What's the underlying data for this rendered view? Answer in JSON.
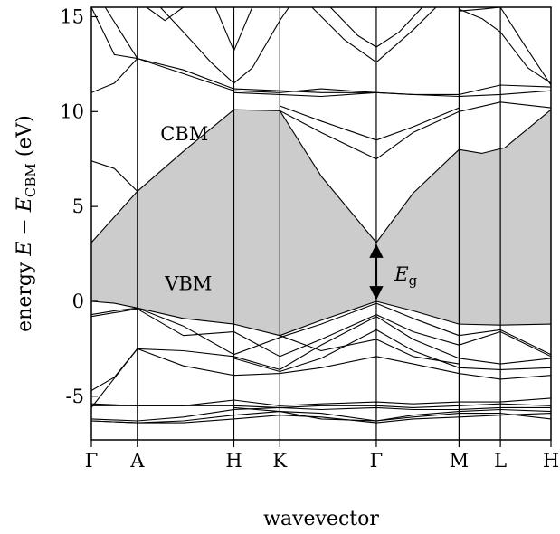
{
  "chart_data": {
    "type": "line",
    "xlabel": "wavevector",
    "ylabel": {
      "prefix": "energy ",
      "var1": "E",
      "dash": " − ",
      "var2": "E",
      "sub": "CBM",
      "unit": " (eV)"
    },
    "ylim": [
      -7.3,
      15.5
    ],
    "yticks": [
      -5,
      0,
      5,
      10,
      15
    ],
    "ytick_labels": [
      "-5",
      "0",
      "5",
      "10",
      "15"
    ],
    "kpoints": [
      {
        "label": "Γ",
        "x": 0.0
      },
      {
        "label": "A",
        "x": 0.1
      },
      {
        "label": "H",
        "x": 0.31
      },
      {
        "label": "K",
        "x": 0.41
      },
      {
        "label": "Γ",
        "x": 0.62
      },
      {
        "label": "M",
        "x": 0.8
      },
      {
        "label": "L",
        "x": 0.89
      },
      {
        "label": "H",
        "x": 1.0
      }
    ],
    "gap": {
      "upper": [
        [
          0,
          3.1
        ],
        [
          0.1,
          5.8
        ],
        [
          0.2,
          7.9
        ],
        [
          0.31,
          10.1
        ],
        [
          0.41,
          10.05
        ],
        [
          0.5,
          6.6
        ],
        [
          0.62,
          3.1
        ],
        [
          0.7,
          5.7
        ],
        [
          0.8,
          8.0
        ],
        [
          0.85,
          7.8
        ],
        [
          0.9,
          8.1
        ],
        [
          1.0,
          10.1
        ]
      ],
      "lower": [
        [
          0,
          0.0
        ],
        [
          0.05,
          -0.1
        ],
        [
          0.1,
          -0.35
        ],
        [
          0.2,
          -0.9
        ],
        [
          0.31,
          -1.2
        ],
        [
          0.41,
          -1.8
        ],
        [
          0.5,
          -1.0
        ],
        [
          0.62,
          0.0
        ],
        [
          0.7,
          -0.5
        ],
        [
          0.8,
          -1.2
        ],
        [
          0.89,
          -1.25
        ],
        [
          1.0,
          -1.2
        ]
      ]
    },
    "bands": [
      [
        [
          0,
          3.1
        ],
        [
          0.1,
          5.8
        ],
        [
          0.2,
          7.9
        ],
        [
          0.31,
          10.1
        ],
        [
          0.41,
          10.05
        ],
        [
          0.5,
          6.6
        ],
        [
          0.62,
          3.1
        ],
        [
          0.7,
          5.7
        ],
        [
          0.8,
          8.0
        ],
        [
          0.85,
          7.8
        ],
        [
          0.9,
          8.1
        ],
        [
          1.0,
          10.1
        ]
      ],
      [
        [
          0,
          7.4
        ],
        [
          0.05,
          7.0
        ],
        [
          0.1,
          5.8
        ]
      ],
      [
        [
          0,
          0.0
        ],
        [
          0.05,
          -0.1
        ],
        [
          0.1,
          -0.35
        ],
        [
          0.2,
          -0.9
        ],
        [
          0.31,
          -1.2
        ],
        [
          0.41,
          -1.8
        ],
        [
          0.5,
          -1.0
        ],
        [
          0.62,
          0.0
        ],
        [
          0.7,
          -0.5
        ],
        [
          0.8,
          -1.2
        ],
        [
          0.89,
          -1.25
        ],
        [
          1.0,
          -1.2
        ]
      ],
      [
        [
          0,
          -0.7
        ],
        [
          0.05,
          -0.5
        ],
        [
          0.1,
          -0.35
        ],
        [
          0.2,
          -1.3
        ],
        [
          0.31,
          -2.8
        ],
        [
          0.41,
          -1.9
        ],
        [
          0.5,
          -1.2
        ],
        [
          0.62,
          -0.1
        ],
        [
          0.7,
          -0.9
        ],
        [
          0.8,
          -1.8
        ],
        [
          0.89,
          -1.5
        ],
        [
          1.0,
          -2.8
        ]
      ],
      [
        [
          0,
          -0.8
        ],
        [
          0.1,
          -0.4
        ],
        [
          0.2,
          -1.8
        ],
        [
          0.31,
          -1.6
        ],
        [
          0.41,
          -2.9
        ],
        [
          0.5,
          -2.0
        ],
        [
          0.62,
          -0.7
        ],
        [
          0.7,
          -1.6
        ],
        [
          0.8,
          -2.3
        ],
        [
          0.89,
          -1.6
        ],
        [
          1.0,
          -2.9
        ]
      ],
      [
        [
          0,
          -4.7
        ],
        [
          0.05,
          -4.0
        ],
        [
          0.1,
          -2.5
        ],
        [
          0.2,
          -2.6
        ],
        [
          0.31,
          -2.9
        ],
        [
          0.41,
          -3.6
        ],
        [
          0.5,
          -2.3
        ],
        [
          0.62,
          -0.8
        ],
        [
          0.7,
          -2.0
        ],
        [
          0.8,
          -3.0
        ],
        [
          0.89,
          -3.3
        ],
        [
          1.0,
          -3.0
        ]
      ],
      [
        [
          0,
          -5.6
        ],
        [
          0.1,
          -2.5
        ]
      ],
      [
        [
          0.1,
          -2.5
        ],
        [
          0.2,
          -3.4
        ],
        [
          0.31,
          -3.9
        ],
        [
          0.41,
          -3.8
        ],
        [
          0.5,
          -3.5
        ],
        [
          0.62,
          -2.9
        ],
        [
          0.7,
          -3.3
        ],
        [
          0.8,
          -3.8
        ],
        [
          0.89,
          -4.1
        ],
        [
          1.0,
          -3.9
        ]
      ],
      [
        [
          0.31,
          -3.0
        ],
        [
          0.41,
          -3.7
        ],
        [
          0.5,
          -3.0
        ],
        [
          0.62,
          -1.5
        ],
        [
          0.7,
          -2.6
        ],
        [
          0.8,
          -3.5
        ],
        [
          0.89,
          -3.6
        ],
        [
          1.0,
          -3.5
        ]
      ],
      [
        [
          0.41,
          -1.8
        ],
        [
          0.5,
          -2.6
        ],
        [
          0.62,
          -2.0
        ],
        [
          0.7,
          -2.9
        ],
        [
          0.8,
          -3.3
        ]
      ],
      [
        [
          0,
          -5.4
        ],
        [
          0.1,
          -5.5
        ],
        [
          0.2,
          -5.5
        ],
        [
          0.31,
          -5.2
        ],
        [
          0.41,
          -5.5
        ],
        [
          0.5,
          -5.4
        ],
        [
          0.62,
          -5.3
        ],
        [
          0.7,
          -5.4
        ],
        [
          0.8,
          -5.3
        ],
        [
          0.89,
          -5.3
        ],
        [
          1.0,
          -5.1
        ]
      ],
      [
        [
          0,
          -5.5
        ],
        [
          0.1,
          -5.5
        ],
        [
          0.2,
          -5.5
        ],
        [
          0.31,
          -5.5
        ],
        [
          0.41,
          -5.6
        ],
        [
          0.5,
          -5.5
        ],
        [
          0.62,
          -5.5
        ],
        [
          0.7,
          -5.6
        ],
        [
          0.8,
          -5.5
        ],
        [
          0.89,
          -5.4
        ],
        [
          1.0,
          -5.5
        ]
      ],
      [
        [
          0,
          -6.2
        ],
        [
          0.1,
          -6.3
        ],
        [
          0.2,
          -6.1
        ],
        [
          0.31,
          -5.7
        ],
        [
          0.41,
          -5.6
        ],
        [
          0.5,
          -5.7
        ],
        [
          0.62,
          -5.6
        ],
        [
          0.7,
          -5.7
        ],
        [
          0.8,
          -5.7
        ],
        [
          0.89,
          -5.6
        ],
        [
          1.0,
          -5.6
        ]
      ],
      [
        [
          0,
          -6.3
        ],
        [
          0.1,
          -6.4
        ],
        [
          0.2,
          -6.3
        ],
        [
          0.31,
          -6.0
        ],
        [
          0.41,
          -5.8
        ],
        [
          0.5,
          -5.9
        ],
        [
          0.62,
          -6.3
        ],
        [
          0.7,
          -6.1
        ],
        [
          0.8,
          -5.9
        ],
        [
          0.89,
          -5.9
        ],
        [
          1.0,
          -6.2
        ]
      ],
      [
        [
          0,
          -6.3
        ],
        [
          0.1,
          -6.4
        ],
        [
          0.2,
          -6.4
        ],
        [
          0.31,
          -6.2
        ],
        [
          0.41,
          -6.0
        ],
        [
          0.5,
          -6.1
        ],
        [
          0.62,
          -6.4
        ],
        [
          0.7,
          -6.2
        ],
        [
          0.8,
          -6.1
        ],
        [
          0.89,
          -6.0
        ],
        [
          1.0,
          -5.9
        ]
      ],
      [
        [
          0.31,
          -5.6
        ],
        [
          0.41,
          -5.8
        ],
        [
          0.5,
          -6.2
        ],
        [
          0.62,
          -6.3
        ],
        [
          0.7,
          -6.0
        ],
        [
          0.8,
          -5.8
        ],
        [
          0.89,
          -5.7
        ],
        [
          1.0,
          -5.8
        ]
      ],
      [
        [
          0,
          11.0
        ],
        [
          0.05,
          11.5
        ],
        [
          0.1,
          12.8
        ],
        [
          0.2,
          12.0
        ],
        [
          0.31,
          11.1
        ],
        [
          0.41,
          11.0
        ],
        [
          0.5,
          11.2
        ],
        [
          0.62,
          11.0
        ],
        [
          0.7,
          10.9
        ],
        [
          0.8,
          10.9
        ],
        [
          0.89,
          11.4
        ],
        [
          1.0,
          11.3
        ]
      ],
      [
        [
          0.03,
          15.5
        ],
        [
          0.1,
          12.8
        ],
        [
          0.2,
          12.2
        ],
        [
          0.31,
          11.2
        ],
        [
          0.41,
          11.1
        ],
        [
          0.5,
          11.0
        ],
        [
          0.62,
          11.0
        ],
        [
          0.7,
          10.9
        ],
        [
          0.8,
          10.8
        ],
        [
          0.89,
          10.9
        ],
        [
          1.0,
          11.1
        ]
      ],
      [
        [
          0,
          15.5
        ],
        [
          0.05,
          13.0
        ],
        [
          0.1,
          12.8
        ]
      ],
      [
        [
          0.15,
          15.5
        ],
        [
          0.2,
          14.2
        ],
        [
          0.26,
          12.6
        ],
        [
          0.31,
          11.5
        ],
        [
          0.35,
          12.3
        ],
        [
          0.41,
          14.8
        ],
        [
          0.43,
          15.5
        ]
      ],
      [
        [
          0.12,
          15.5
        ],
        [
          0.16,
          14.8
        ],
        [
          0.2,
          15.5
        ]
      ],
      [
        [
          0.27,
          15.5
        ],
        [
          0.31,
          13.2
        ],
        [
          0.35,
          15.5
        ]
      ],
      [
        [
          0.31,
          11.0
        ],
        [
          0.41,
          10.9
        ],
        [
          0.5,
          10.8
        ],
        [
          0.62,
          11.0
        ]
      ],
      [
        [
          0.41,
          10.05
        ],
        [
          0.5,
          8.9
        ],
        [
          0.62,
          7.5
        ],
        [
          0.7,
          8.9
        ],
        [
          0.8,
          10.0
        ],
        [
          0.89,
          10.5
        ],
        [
          1.0,
          10.2
        ]
      ],
      [
        [
          0.41,
          10.3
        ],
        [
          0.5,
          9.5
        ],
        [
          0.62,
          8.5
        ],
        [
          0.7,
          9.2
        ],
        [
          0.8,
          10.2
        ]
      ],
      [
        [
          0.48,
          15.5
        ],
        [
          0.55,
          13.8
        ],
        [
          0.62,
          12.6
        ],
        [
          0.7,
          14.3
        ],
        [
          0.75,
          15.5
        ]
      ],
      [
        [
          0.52,
          15.5
        ],
        [
          0.58,
          14.0
        ],
        [
          0.62,
          13.4
        ],
        [
          0.67,
          14.2
        ],
        [
          0.72,
          15.5
        ]
      ],
      [
        [
          0.8,
          15.4
        ],
        [
          0.85,
          14.9
        ],
        [
          0.89,
          14.2
        ],
        [
          0.95,
          12.3
        ],
        [
          1.0,
          11.5
        ]
      ],
      [
        [
          0.89,
          15.5
        ],
        [
          0.94,
          13.6
        ],
        [
          1.0,
          11.4
        ]
      ],
      [
        [
          0.8,
          15.3
        ],
        [
          0.85,
          15.4
        ],
        [
          0.89,
          15.5
        ]
      ]
    ],
    "labels": {
      "cbm": {
        "text": "CBM",
        "x": 0.15,
        "y": 8.5
      },
      "vbm": {
        "text": "VBM",
        "x": 0.16,
        "y": 0.6
      },
      "gap": {
        "var": "E",
        "sub": "g",
        "x": 0.66,
        "y": 1.1
      }
    },
    "gap_arrow": {
      "x": 0.62,
      "from": 0.0,
      "to": 3.1
    }
  }
}
